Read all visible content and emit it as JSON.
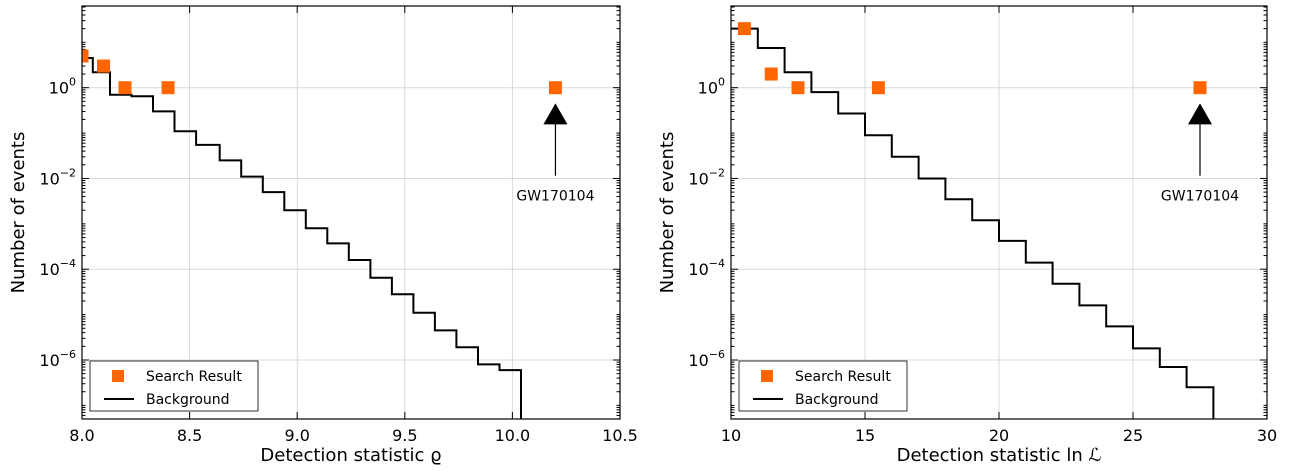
{
  "chart_data": [
    {
      "type": "scatter",
      "xlabel": "Detection statistic ϱ",
      "ylabel": "Number of events",
      "xlim": [
        8.0,
        10.5
      ],
      "ylim_log10": [
        -7.3,
        1.8
      ],
      "y_scale": "log",
      "grid": true,
      "legend_placement": "lower-left",
      "xticks": [
        {
          "value": 8.0,
          "label": "8.0"
        },
        {
          "value": 8.5,
          "label": "8.5"
        },
        {
          "value": 9.0,
          "label": "9.0"
        },
        {
          "value": 9.5,
          "label": "9.5"
        },
        {
          "value": 10.0,
          "label": "10.0"
        },
        {
          "value": 10.5,
          "label": "10.5"
        }
      ],
      "yticks": [
        {
          "exp": 0,
          "base": "10",
          "sup": "0"
        },
        {
          "exp": -2,
          "base": "10",
          "sup": "−2"
        },
        {
          "exp": -4,
          "base": "10",
          "sup": "−4"
        },
        {
          "exp": -6,
          "base": "10",
          "sup": "−6"
        }
      ],
      "series": [
        {
          "name": "Search Result",
          "kind": "points",
          "color": "#ff6600",
          "points": [
            {
              "x": 8.0,
              "y": 5
            },
            {
              "x": 8.1,
              "y": 3
            },
            {
              "x": 8.2,
              "y": 1
            },
            {
              "x": 8.4,
              "y": 1
            },
            {
              "x": 10.2,
              "y": 1
            }
          ]
        },
        {
          "name": "Background",
          "kind": "step",
          "color": "#000000",
          "edges": [
            8.0,
            8.05,
            8.13,
            8.23,
            8.33,
            8.43,
            8.53,
            8.64,
            8.74,
            8.84,
            8.94,
            9.04,
            9.14,
            9.24,
            9.34,
            9.44,
            9.54,
            9.64,
            9.74,
            9.84,
            9.94,
            10.04
          ],
          "values": [
            4.5,
            2.2,
            0.7,
            0.65,
            0.3,
            0.11,
            0.055,
            0.025,
            0.011,
            0.005,
            0.002,
            0.0008,
            0.00037,
            0.00016,
            6.5e-05,
            2.8e-05,
            1.1e-05,
            4.5e-06,
            1.9e-06,
            8e-07,
            6e-07
          ],
          "drop_to_bottom": true
        }
      ],
      "annotation": {
        "text": "GW170104",
        "x": 10.2,
        "y_tip": 0.35,
        "y_tail": 0.0115
      }
    },
    {
      "type": "scatter",
      "xlabel": "Detection statistic ln ℒ",
      "ylabel": "Number of events",
      "xlim": [
        10,
        30
      ],
      "ylim_log10": [
        -7.3,
        1.8
      ],
      "y_scale": "log",
      "grid": true,
      "legend_placement": "lower-left",
      "xticks": [
        {
          "value": 10,
          "label": "10"
        },
        {
          "value": 15,
          "label": "15"
        },
        {
          "value": 20,
          "label": "20"
        },
        {
          "value": 25,
          "label": "25"
        },
        {
          "value": 30,
          "label": "30"
        }
      ],
      "yticks": [
        {
          "exp": 0,
          "base": "10",
          "sup": "0"
        },
        {
          "exp": -2,
          "base": "10",
          "sup": "−2"
        },
        {
          "exp": -4,
          "base": "10",
          "sup": "−4"
        },
        {
          "exp": -6,
          "base": "10",
          "sup": "−6"
        }
      ],
      "series": [
        {
          "name": "Search Result",
          "kind": "points",
          "color": "#ff6600",
          "points": [
            {
              "x": 10.5,
              "y": 20
            },
            {
              "x": 11.5,
              "y": 2
            },
            {
              "x": 12.5,
              "y": 1
            },
            {
              "x": 15.5,
              "y": 1
            },
            {
              "x": 27.5,
              "y": 1
            }
          ]
        },
        {
          "name": "Background",
          "kind": "step",
          "color": "#000000",
          "edges": [
            10,
            11,
            12,
            13,
            14,
            15,
            16,
            17,
            18,
            19,
            20,
            21,
            22,
            23,
            24,
            25,
            26,
            27,
            28
          ],
          "values": [
            20,
            7.5,
            2.2,
            0.8,
            0.27,
            0.09,
            0.03,
            0.01,
            0.0035,
            0.0012,
            0.00042,
            0.00014,
            4.8e-05,
            1.6e-05,
            5.5e-06,
            1.8e-06,
            7e-07,
            2.5e-07
          ],
          "drop_to_bottom": true
        }
      ],
      "annotation": {
        "text": "GW170104",
        "x": 27.5,
        "y_tip": 0.35,
        "y_tail": 0.0115
      }
    }
  ]
}
